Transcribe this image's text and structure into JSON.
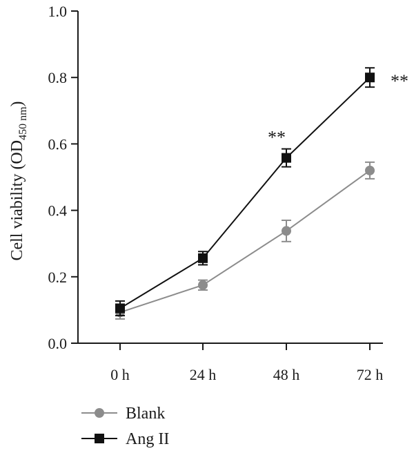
{
  "chart_data": {
    "type": "line",
    "categories": [
      "0 h",
      "24 h",
      "48 h",
      "72 h"
    ],
    "ylabel_main": "Cell viability (OD",
    "ylabel_sub": "450 nm",
    "ylabel_close": ")",
    "ylim": [
      0.0,
      1.0
    ],
    "yticks": [
      0.0,
      0.2,
      0.4,
      0.6,
      0.8,
      1.0
    ],
    "ytick_labels": [
      "0.0",
      "0.2",
      "0.4",
      "0.6",
      "0.8",
      "1.0"
    ],
    "grid": false,
    "legend_position": "bottom-left",
    "series": [
      {
        "name": "Blank",
        "color": "#8c8c8c",
        "marker": "circle",
        "values": [
          0.093,
          0.175,
          0.338,
          0.52
        ],
        "errors": [
          0.02,
          0.015,
          0.032,
          0.025
        ]
      },
      {
        "name": "Ang II",
        "color": "#111111",
        "marker": "square",
        "values": [
          0.105,
          0.256,
          0.558,
          0.8
        ],
        "errors": [
          0.022,
          0.02,
          0.027,
          0.029
        ]
      }
    ],
    "annotations": [
      {
        "text": "**",
        "category": "48 h",
        "series": "Ang II"
      },
      {
        "text": "**",
        "category": "72 h",
        "series": "Ang II"
      }
    ]
  }
}
